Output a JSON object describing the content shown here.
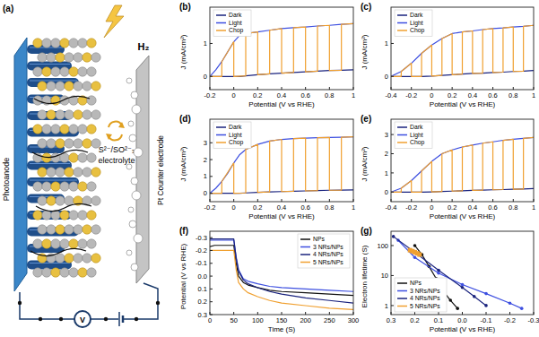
{
  "diagram": {
    "label": "(a)",
    "photoanode": "Photoanode",
    "product": "H₂",
    "redox": "S²⁻/SO²⁻₃",
    "electrolyte": "electrolyte",
    "counter_electrode": "Pt Counter electrode",
    "meter": "V"
  },
  "chart_data": [
    {
      "type": "line",
      "title": "(b)",
      "x_label": "Potential (V vs RHE)",
      "y_label": "J (mA/cm²)",
      "xlim": [
        -0.2,
        1
      ],
      "xticks": [
        -0.2,
        0,
        0.2,
        0.4,
        0.6,
        0.8,
        1
      ],
      "ylim": [
        -0.4,
        2.1
      ],
      "yticks": [
        0,
        1
      ],
      "grid": false,
      "legend": "top-left",
      "series": [
        {
          "name": "Dark",
          "color": "#1a237e",
          "x": [
            -0.2,
            -0.15,
            -0.1,
            -0.05,
            0,
            0.05,
            0.1,
            0.2,
            0.3,
            0.4,
            0.5,
            0.6,
            0.7,
            0.8,
            0.9,
            1.0
          ],
          "values": [
            0,
            0,
            0,
            0,
            0,
            0,
            0.02,
            0.05,
            0.08,
            0.1,
            0.12,
            0.14,
            0.16,
            0.18,
            0.19,
            0.2
          ]
        },
        {
          "name": "Light",
          "color": "#3d4fe0",
          "x": [
            -0.2,
            -0.15,
            -0.1,
            -0.05,
            0,
            0.05,
            0.1,
            0.2,
            0.3,
            0.4,
            0.5,
            0.6,
            0.7,
            0.8,
            0.9,
            1.0
          ],
          "values": [
            0,
            0.2,
            0.45,
            0.75,
            1.05,
            1.25,
            1.3,
            1.35,
            1.4,
            1.45,
            1.48,
            1.5,
            1.53,
            1.55,
            1.58,
            1.6
          ]
        },
        {
          "name": "Chop",
          "color": "#f0a030",
          "x": [
            -0.2,
            -0.1,
            -0.1,
            0,
            0,
            0.1,
            0.1,
            0.2,
            0.2,
            0.3,
            0.3,
            0.4,
            0.4,
            0.5,
            0.5,
            0.6,
            0.6,
            0.7,
            0.7,
            0.8,
            0.8,
            0.9,
            0.9,
            1.0
          ],
          "values": [
            0,
            0,
            0.45,
            1.05,
            0,
            0.02,
            1.3,
            1.35,
            0.05,
            0.08,
            1.4,
            1.45,
            0.1,
            0.12,
            1.48,
            1.5,
            0.14,
            0.16,
            1.53,
            1.55,
            0.18,
            0.19,
            1.58,
            1.6
          ]
        }
      ]
    },
    {
      "type": "line",
      "title": "(c)",
      "x_label": "Potential (V vs RHE)",
      "y_label": "J (mA/cm²)",
      "xlim": [
        -0.4,
        1
      ],
      "xticks": [
        -0.4,
        -0.2,
        0,
        0.2,
        0.4,
        0.6,
        0.8,
        1
      ],
      "ylim": [
        -0.4,
        2.1
      ],
      "yticks": [
        0,
        1
      ],
      "grid": false,
      "legend": "top-left",
      "series": [
        {
          "name": "Dark",
          "color": "#1a237e",
          "x": [
            -0.4,
            -0.3,
            -0.2,
            -0.1,
            0,
            0.1,
            0.2,
            0.3,
            0.4,
            0.5,
            0.6,
            0.7,
            0.8,
            0.9,
            1.0
          ],
          "values": [
            0,
            0,
            0,
            0,
            0.01,
            0.03,
            0.05,
            0.07,
            0.09,
            0.1,
            0.12,
            0.13,
            0.15,
            0.16,
            0.18
          ]
        },
        {
          "name": "Light",
          "color": "#3d4fe0",
          "x": [
            -0.4,
            -0.3,
            -0.2,
            -0.1,
            0,
            0.1,
            0.2,
            0.3,
            0.4,
            0.5,
            0.6,
            0.7,
            0.8,
            0.9,
            1.0
          ],
          "values": [
            0,
            0.15,
            0.4,
            0.7,
            0.95,
            1.15,
            1.3,
            1.35,
            1.38,
            1.42,
            1.45,
            1.47,
            1.5,
            1.52,
            1.55
          ]
        },
        {
          "name": "Chop",
          "color": "#f0a030",
          "x": [
            -0.4,
            -0.3,
            -0.3,
            -0.2,
            -0.2,
            -0.1,
            -0.1,
            0,
            0,
            0.1,
            0.1,
            0.2,
            0.2,
            0.3,
            0.3,
            0.4,
            0.4,
            0.5,
            0.5,
            0.6,
            0.6,
            0.7,
            0.7,
            0.8,
            0.8,
            0.9,
            0.9,
            1.0
          ],
          "values": [
            0,
            0,
            0.15,
            0.4,
            0,
            0,
            0.7,
            0.95,
            0.01,
            0.03,
            1.15,
            1.3,
            0.05,
            0.07,
            1.35,
            1.38,
            0.09,
            0.1,
            1.42,
            1.45,
            0.12,
            0.13,
            1.47,
            1.5,
            0.15,
            0.16,
            1.52,
            1.55
          ]
        }
      ]
    },
    {
      "type": "line",
      "title": "(d)",
      "x_label": "Potential (V vs RHE)",
      "y_label": "J (mA/cm²)",
      "xlim": [
        -0.2,
        1
      ],
      "xticks": [
        -0.2,
        0,
        0.2,
        0.4,
        0.6,
        0.8,
        1
      ],
      "ylim": [
        -0.5,
        4.4
      ],
      "yticks": [
        0,
        1,
        2,
        3
      ],
      "grid": false,
      "legend": "top-left",
      "series": [
        {
          "name": "Dark",
          "color": "#1a237e",
          "x": [
            -0.2,
            -0.15,
            -0.1,
            -0.05,
            0,
            0.05,
            0.1,
            0.2,
            0.3,
            0.4,
            0.5,
            0.6,
            0.7,
            0.8,
            0.9,
            1.0
          ],
          "values": [
            0,
            0,
            0,
            0,
            0,
            0,
            0.02,
            0.05,
            0.08,
            0.1,
            0.12,
            0.14,
            0.16,
            0.18,
            0.19,
            0.2
          ]
        },
        {
          "name": "Light",
          "color": "#3d4fe0",
          "x": [
            -0.2,
            -0.15,
            -0.1,
            -0.05,
            0,
            0.05,
            0.1,
            0.2,
            0.3,
            0.4,
            0.5,
            0.6,
            0.7,
            0.8,
            0.9,
            1.0
          ],
          "values": [
            0,
            0.3,
            0.7,
            1.2,
            1.8,
            2.3,
            2.6,
            2.9,
            3.1,
            3.2,
            3.25,
            3.28,
            3.3,
            3.32,
            3.33,
            3.35
          ]
        },
        {
          "name": "Chop",
          "color": "#f0a030",
          "x": [
            -0.2,
            -0.1,
            -0.1,
            0,
            0,
            0.1,
            0.1,
            0.2,
            0.2,
            0.3,
            0.3,
            0.4,
            0.4,
            0.5,
            0.5,
            0.6,
            0.6,
            0.7,
            0.7,
            0.8,
            0.8,
            0.9,
            0.9,
            1.0
          ],
          "values": [
            0,
            0,
            0.7,
            1.8,
            0,
            0.02,
            2.6,
            2.9,
            0.05,
            0.08,
            3.1,
            3.2,
            0.1,
            0.12,
            3.25,
            3.28,
            0.14,
            0.16,
            3.3,
            3.32,
            0.18,
            0.19,
            3.33,
            3.35
          ]
        }
      ]
    },
    {
      "type": "line",
      "title": "(e)",
      "x_label": "Potential (V vs RHE)",
      "y_label": "J (mA/cm²)",
      "xlim": [
        -0.4,
        1
      ],
      "xticks": [
        -0.4,
        -0.2,
        0,
        0.2,
        0.4,
        0.6,
        0.8,
        1
      ],
      "ylim": [
        -0.5,
        3.8
      ],
      "yticks": [
        0,
        1,
        2,
        3
      ],
      "grid": false,
      "legend": "top-left",
      "series": [
        {
          "name": "Dark",
          "color": "#1a237e",
          "x": [
            -0.4,
            -0.3,
            -0.2,
            -0.1,
            0,
            0.1,
            0.2,
            0.3,
            0.4,
            0.5,
            0.6,
            0.7,
            0.8,
            0.9,
            1.0
          ],
          "values": [
            0,
            0,
            0,
            0,
            0.01,
            0.03,
            0.05,
            0.07,
            0.09,
            0.1,
            0.12,
            0.13,
            0.15,
            0.16,
            0.18
          ]
        },
        {
          "name": "Light",
          "color": "#3d4fe0",
          "x": [
            -0.4,
            -0.3,
            -0.2,
            -0.1,
            0,
            0.1,
            0.2,
            0.3,
            0.4,
            0.5,
            0.6,
            0.7,
            0.8,
            0.9,
            1.0
          ],
          "values": [
            0,
            0.2,
            0.6,
            1.1,
            1.6,
            2.0,
            2.2,
            2.35,
            2.45,
            2.55,
            2.62,
            2.7,
            2.75,
            2.8,
            2.85
          ]
        },
        {
          "name": "Chop",
          "color": "#f0a030",
          "x": [
            -0.4,
            -0.3,
            -0.3,
            -0.2,
            -0.2,
            -0.1,
            -0.1,
            0,
            0,
            0.1,
            0.1,
            0.2,
            0.2,
            0.3,
            0.3,
            0.4,
            0.4,
            0.5,
            0.5,
            0.6,
            0.6,
            0.7,
            0.7,
            0.8,
            0.8,
            0.9,
            0.9,
            1.0
          ],
          "values": [
            0,
            0,
            0.2,
            0.6,
            0,
            0,
            1.1,
            1.6,
            0.01,
            0.03,
            2.0,
            2.2,
            0.05,
            0.07,
            2.35,
            2.45,
            0.09,
            0.1,
            2.55,
            2.62,
            0.12,
            0.13,
            2.7,
            2.75,
            0.15,
            0.16,
            2.8,
            2.85
          ]
        }
      ]
    },
    {
      "type": "line",
      "title": "(f)",
      "x_label": "Time (S)",
      "y_label": "Potential (V vs RHE)",
      "x": [
        0,
        10,
        20,
        30,
        40,
        50,
        55,
        60,
        70,
        80,
        100,
        125,
        150,
        200,
        250,
        300
      ],
      "xlim": [
        0,
        300
      ],
      "xticks": [
        0,
        50,
        100,
        150,
        200,
        250,
        300
      ],
      "ylim": [
        0.3,
        -0.35
      ],
      "yticks": [
        -0.3,
        -0.2,
        -0.1,
        {
          "value": 0,
          "label": "0.0"
        },
        0.1,
        0.2,
        0.3
      ],
      "grid": false,
      "legend": "top-right",
      "series": [
        {
          "name": "NPs",
          "color": "#111111",
          "values": [
            -0.23,
            -0.24,
            -0.24,
            -0.24,
            -0.24,
            -0.24,
            -0.1,
            0.0,
            0.05,
            0.07,
            0.09,
            0.11,
            0.12,
            0.13,
            0.14,
            0.15
          ]
        },
        {
          "name": "3 NRs/NPs",
          "color": "#3d4fe0",
          "values": [
            -0.28,
            -0.28,
            -0.28,
            -0.28,
            -0.28,
            -0.28,
            -0.15,
            -0.05,
            0.02,
            0.04,
            0.06,
            0.08,
            0.09,
            0.1,
            0.11,
            0.12
          ]
        },
        {
          "name": "4 NRs/NPs",
          "color": "#1a237e",
          "values": [
            -0.29,
            -0.29,
            -0.29,
            -0.29,
            -0.29,
            -0.29,
            -0.14,
            -0.04,
            0.03,
            0.06,
            0.09,
            0.12,
            0.14,
            0.17,
            0.19,
            0.21
          ]
        },
        {
          "name": "5 NRs/NPs",
          "color": "#f0a030",
          "values": [
            -0.2,
            -0.2,
            -0.2,
            -0.2,
            -0.2,
            -0.2,
            -0.05,
            0.05,
            0.1,
            0.13,
            0.16,
            0.19,
            0.21,
            0.23,
            0.25,
            0.26
          ]
        }
      ]
    },
    {
      "type": "line",
      "title": "(g)",
      "x_label": "Potential (V vs RHE)",
      "y_label": "Electron lifetime (S)",
      "log": "y",
      "xlim": [
        0.3,
        -0.3
      ],
      "xticks": [
        0.3,
        0.2,
        0.1,
        {
          "value": 0,
          "label": "0.0"
        },
        -0.1,
        -0.2,
        -0.3
      ],
      "ylim": [
        0.5,
        300
      ],
      "yticks": [
        1,
        10,
        100
      ],
      "grid": false,
      "legend": "bottom-left",
      "series": [
        {
          "name": "NPs",
          "color": "#111111",
          "marker": "circle",
          "x": [
            0.2,
            0.17,
            0.14,
            0.11,
            0.08,
            0.05,
            0.02
          ],
          "values": [
            100,
            50,
            20,
            8,
            3,
            1.5,
            0.8
          ]
        },
        {
          "name": "3 NRs/NPs",
          "color": "#3d4fe0",
          "marker": "circle",
          "x": [
            0.27,
            0.2,
            0.1,
            0,
            -0.1,
            -0.2,
            -0.25
          ],
          "values": [
            150,
            40,
            12,
            5,
            2.5,
            1.2,
            0.8
          ]
        },
        {
          "name": "4 NRs/NPs",
          "color": "#1a237e",
          "marker": "circle",
          "x": [
            0.29,
            0.2,
            0.1,
            0,
            -0.05,
            -0.1
          ],
          "values": [
            200,
            60,
            15,
            4,
            2,
            1
          ]
        },
        {
          "name": "5 NRs/NPs",
          "color": "#f0a030",
          "marker": "square",
          "x": [
            0.22,
            0.21,
            0.2,
            0.19,
            0.18
          ],
          "values": [
            70,
            65,
            60,
            55,
            50
          ]
        }
      ]
    }
  ]
}
